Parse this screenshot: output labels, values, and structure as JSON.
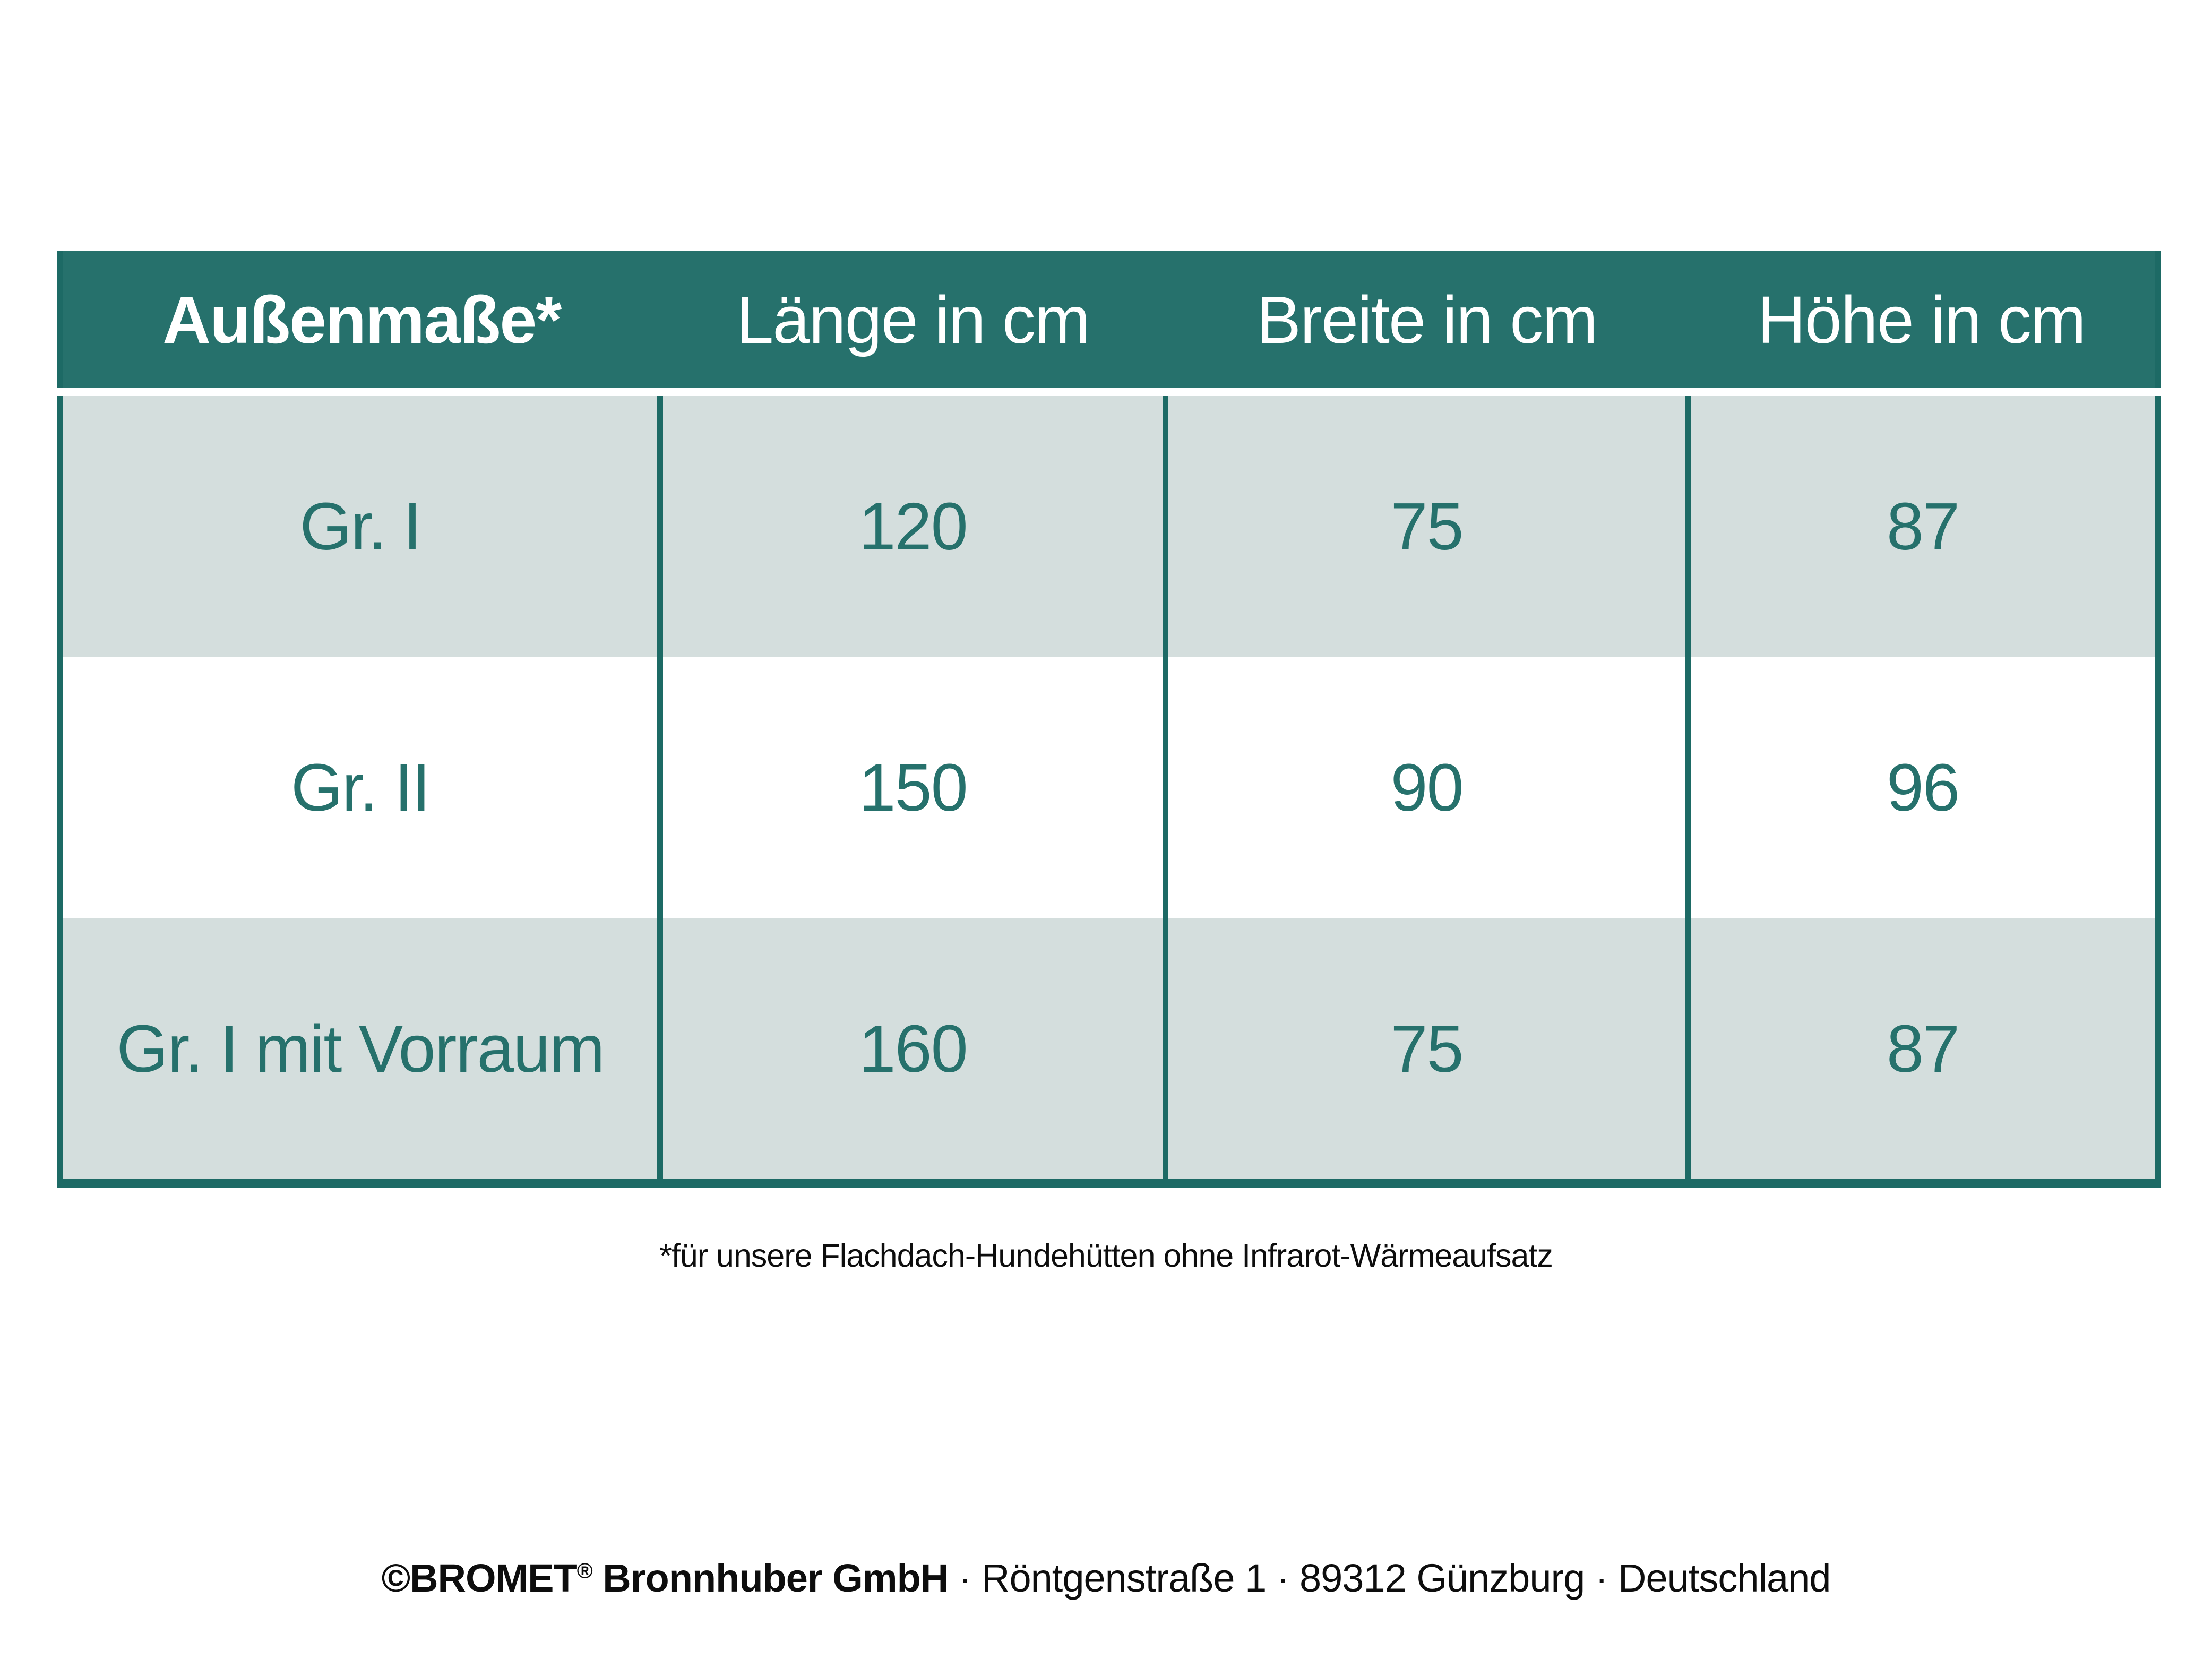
{
  "colors": {
    "header_teal": "#26716C",
    "border_teal": "#1D6A65",
    "row_shade": "#D4DEDD",
    "row_plain": "#FFFFFF",
    "cell_text_teal": "#26716C",
    "footer_text": "#0D0D0D"
  },
  "chart_data": {
    "type": "table",
    "title": "Außenmaße*",
    "columns": [
      "Außenmaße*",
      "Länge in cm",
      "Breite in cm",
      "Höhe in cm"
    ],
    "rows": [
      {
        "label": "Gr. I",
        "laenge_cm": 120,
        "breite_cm": 75,
        "hoehe_cm": 87
      },
      {
        "label": "Gr. II",
        "laenge_cm": 150,
        "breite_cm": 90,
        "hoehe_cm": 96
      },
      {
        "label": "Gr. I mit Vorraum",
        "laenge_cm": 160,
        "breite_cm": 75,
        "hoehe_cm": 87
      }
    ],
    "footnote": "*für unsere Flachdach-Hundehütten ohne Infrarot-Wärmeaufsatz"
  },
  "table": {
    "headers": [
      "Außenmaße*",
      "Länge in cm",
      "Breite in cm",
      "Höhe in cm"
    ],
    "rows": [
      [
        "Gr. I",
        "120",
        "75",
        "87"
      ],
      [
        "Gr. II",
        "150",
        "90",
        "96"
      ],
      [
        "Gr. I mit Vorraum",
        "160",
        "75",
        "87"
      ]
    ]
  },
  "footnote": "*für unsere Flachdach-Hundehütten ohne Infrarot-Wärmeaufsatz",
  "footer": {
    "brand": "©BROMET",
    "reg_mark": "®",
    "brand_suffix": " Bronnhuber GmbH",
    "address": " · Röntgenstraße 1 · 89312 Günzburg · Deutschland"
  }
}
